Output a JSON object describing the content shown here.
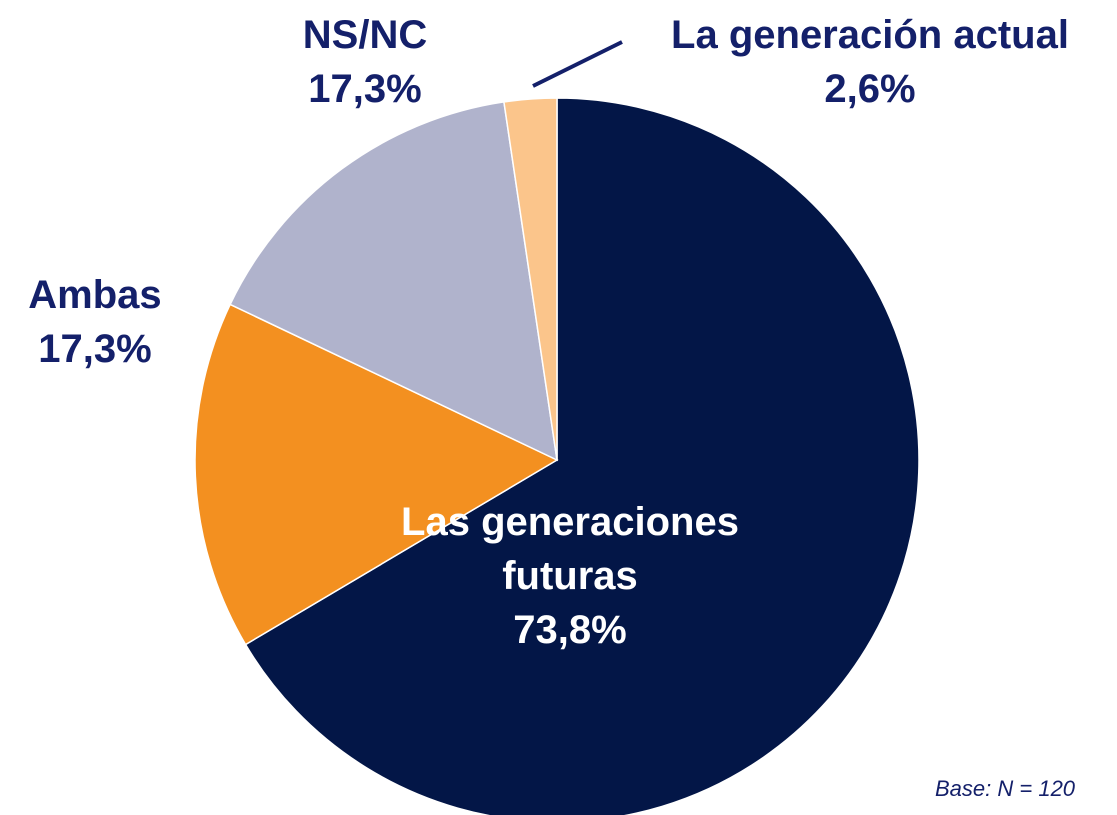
{
  "chart_data": {
    "type": "pie",
    "categories": [
      "Las generaciones futuras",
      "Ambas",
      "NS/NC",
      "La generación actual"
    ],
    "values": [
      73.8,
      17.3,
      17.3,
      2.6
    ],
    "value_labels": [
      "73,8%",
      "17,3%",
      "17,3%",
      "2,6%"
    ],
    "colors": [
      "#031647",
      "#f39020",
      "#b0b3cc",
      "#fbc58b"
    ],
    "note": "Base: N = 120"
  }
}
